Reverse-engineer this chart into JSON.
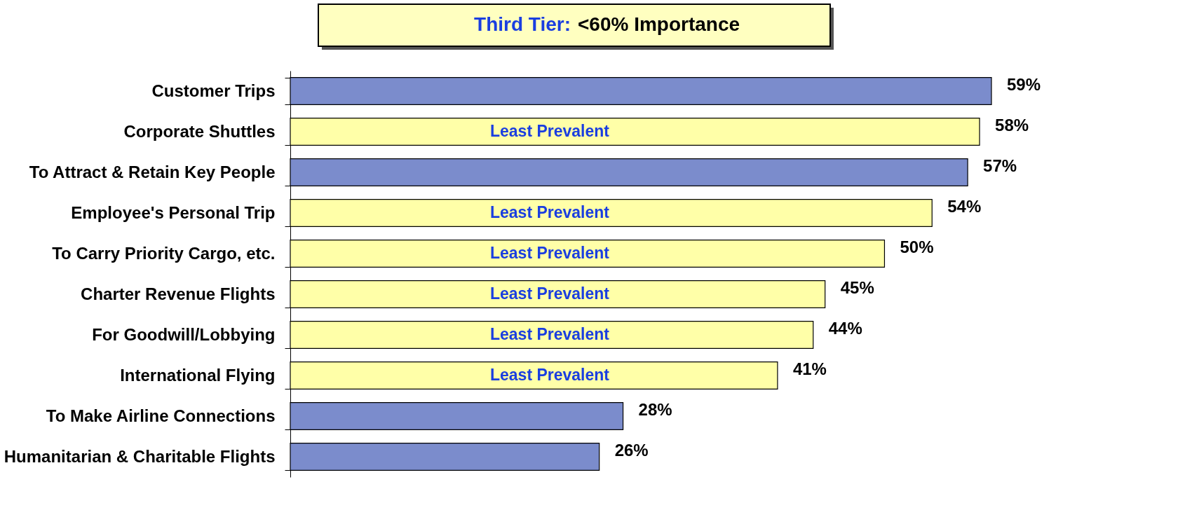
{
  "chart_data": {
    "type": "bar",
    "orientation": "horizontal",
    "title": "Third Tier: <60% Importance",
    "categories": [
      "Customer Trips",
      "Corporate Shuttles",
      "To Attract & Retain Key People",
      "Employee's Personal Trip",
      "To Carry Priority Cargo, etc.",
      "Charter Revenue Flights",
      "For Goodwill/Lobbying",
      "International Flying",
      "To Make Airline Connections",
      "Humanitarian & Charitable Flights"
    ],
    "values": [
      59,
      58,
      57,
      54,
      50,
      45,
      44,
      41,
      28,
      26
    ],
    "value_labels": [
      "59%",
      "58%",
      "57%",
      "54%",
      "50%",
      "45%",
      "44%",
      "41%",
      "28%",
      "26%"
    ],
    "colors": [
      "#7b8ccc",
      "#ffffa8",
      "#7b8ccc",
      "#ffffa8",
      "#ffffa8",
      "#ffffa8",
      "#ffffa8",
      "#ffffa8",
      "#7b8ccc",
      "#7b8ccc"
    ],
    "annotations": [
      {
        "text": "Least Prevalent",
        "y": "Corporate Shuttles"
      },
      {
        "text": "Least Prevalent",
        "y": "Employee's Personal Trip"
      },
      {
        "text": "Least Prevalent",
        "y": "To Carry Priority Cargo, etc."
      },
      {
        "text": "Least Prevalent",
        "y": "Charter Revenue Flights"
      },
      {
        "text": "Least Prevalent",
        "y": "For Goodwill/Lobbying"
      },
      {
        "text": "Least Prevalent",
        "y": "International Flying"
      }
    ],
    "legend": false,
    "grid": false
  }
}
